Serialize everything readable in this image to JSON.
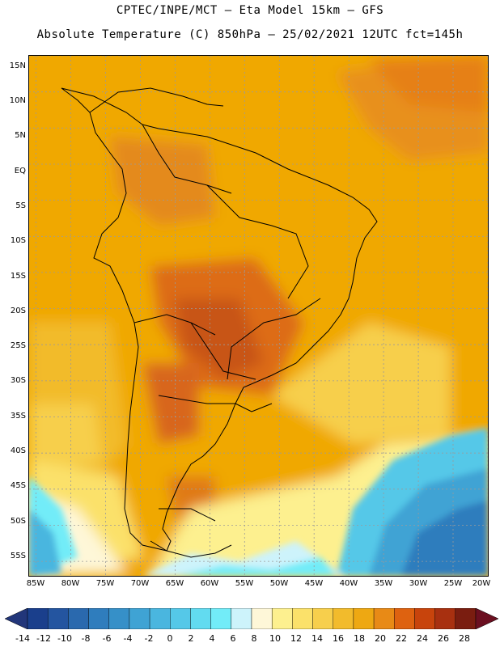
{
  "header": {
    "title_line1": "CPTEC/INPE/MCT –   Eta Model 15km – GFS",
    "title_line2": "Absolute Temperature (C) 850hPa – 25/02/2021 12UTC fct=145h"
  },
  "map": {
    "lat_labels": [
      "15N",
      "10N",
      "5N",
      "EQ",
      "5S",
      "10S",
      "15S",
      "20S",
      "25S",
      "30S",
      "35S",
      "40S",
      "45S",
      "50S",
      "55S"
    ],
    "lon_labels": [
      "85W",
      "80W",
      "75W",
      "70W",
      "65W",
      "60W",
      "55W",
      "50W",
      "45W",
      "40W",
      "35W",
      "30W",
      "25W",
      "20W"
    ],
    "lat_range": [
      15,
      -57
    ],
    "lon_range": [
      -86,
      -20
    ],
    "gridlines": "dotted"
  },
  "colorbar": {
    "labels": [
      "-14",
      "-12",
      "-10",
      "-8",
      "-6",
      "-4",
      "-2",
      "0",
      "2",
      "4",
      "6",
      "8",
      "10",
      "12",
      "14",
      "16",
      "18",
      "20",
      "22",
      "24",
      "26",
      "28"
    ],
    "colors": [
      "#1a3f8c",
      "#2455a0",
      "#2a69ae",
      "#2f7dbd",
      "#3690c8",
      "#3fa3d4",
      "#4ab6df",
      "#55c8e8",
      "#62dbf0",
      "#72ecf8",
      "#cdf3fb",
      "#fef7d8",
      "#fdf08f",
      "#fbe16a",
      "#f7cf4c",
      "#f2bb2c",
      "#eea812",
      "#e88a16",
      "#de6210",
      "#c8440c",
      "#a83010",
      "#7a1d10"
    ],
    "under_color": "#22367a",
    "over_color": "#6b0f20"
  }
}
